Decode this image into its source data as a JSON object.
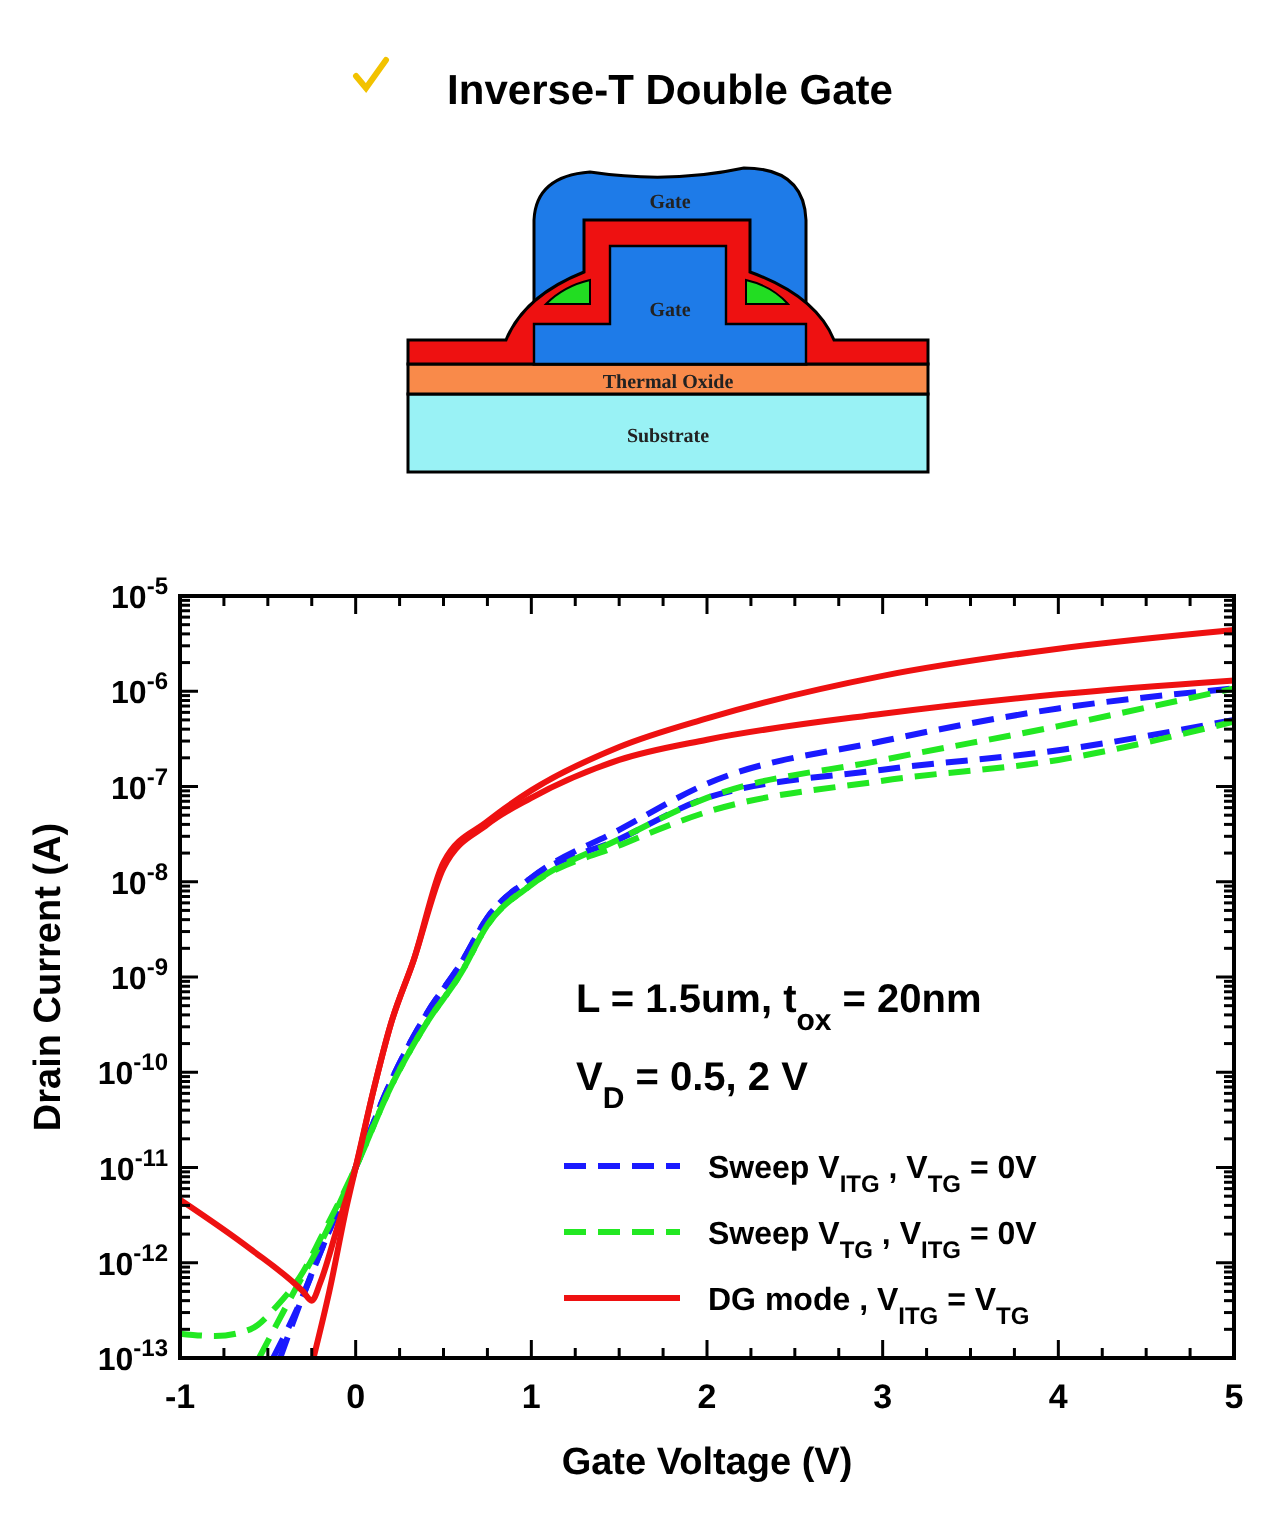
{
  "chart_data": {
    "type": "line",
    "title": "Inverse-T Double Gate",
    "xlabel": "Gate Voltage (V)",
    "ylabel": "Drain Current (A)",
    "log": "y",
    "xlim": [
      -1,
      5
    ],
    "xticks": [
      -1,
      0,
      1,
      2,
      3,
      4,
      5
    ],
    "ylim": [
      1e-13,
      1e-05
    ],
    "yticks": [
      {
        "value": 1e-13,
        "label": "10$^{-13}$"
      },
      {
        "value": 1e-12,
        "label": "10$^{-12}$"
      },
      {
        "value": 1e-11,
        "label": "10$^{-11}$"
      },
      {
        "value": 1e-10,
        "label": "10$^{-10}$"
      },
      {
        "value": 1e-09,
        "label": "10$^{-9}$"
      },
      {
        "value": 1e-08,
        "label": "10$^{-8}$"
      },
      {
        "value": 1e-07,
        "label": "10$^{-7}$"
      },
      {
        "value": 1e-06,
        "label": "10$^{-6}$"
      },
      {
        "value": 1e-05,
        "label": "10$^{-5}$"
      }
    ],
    "grid": false,
    "legend": "bottom right",
    "marker": "none",
    "annotations": [
      "L = 1.5um,  t$_{ox}$ = 20nm",
      "V$_{D}$ = 0.5, 2 V",
      "Gate",
      "Gate",
      "Thermal Oxide",
      "Substrate"
    ],
    "series": [
      {
        "name": "Sweep V$_{ITG}$ , V$_{TG}$ = 0V",
        "color": "#1a1aff",
        "line_style": "dashed",
        "x": [
          -0.47,
          -0.3,
          -0.2,
          0,
          0.2,
          0.4,
          0.6,
          0.75,
          1,
          1.5,
          2,
          3,
          4,
          5
        ],
        "values": [
          1e-13,
          4.5e-13,
          1.3e-12,
          1e-11,
          8e-11,
          4e-10,
          1.4e-09,
          4.2e-09,
          1.1e-08,
          2.8e-08,
          7.6e-08,
          1.5e-07,
          2.4e-07,
          5e-07
        ]
      },
      {
        "color": "#1a1aff",
        "line_style": "dashed",
        "x": [
          -0.43,
          -0.3,
          -0.2,
          0,
          0.2,
          0.4,
          0.6,
          0.75,
          1,
          1.5,
          2,
          3,
          4,
          5
        ],
        "values": [
          1e-13,
          4.5e-13,
          1.3e-12,
          1e-11,
          8e-11,
          4e-10,
          1.4e-09,
          4.2e-09,
          1.1e-08,
          3.5e-08,
          1.07e-07,
          3e-07,
          6.6e-07,
          1.07e-06
        ]
      },
      {
        "name": "Sweep V$_{TG}$ , V$_{ITG}$ = 0V",
        "color": "#22e822",
        "line_style": "dashed",
        "x": [
          -0.55,
          -0.35,
          -0.2,
          0,
          0.2,
          0.4,
          0.6,
          0.75,
          1,
          1.5,
          2,
          3,
          4,
          5
        ],
        "values": [
          1e-13,
          5e-13,
          1.6e-12,
          1e-11,
          7e-11,
          3.2e-10,
          1.1e-09,
          3.5e-09,
          9.3e-09,
          2.4e-08,
          5.4e-08,
          1.15e-07,
          1.9e-07,
          4.8e-07
        ]
      },
      {
        "color": "#22e822",
        "line_style": "dashed",
        "x": [
          -1,
          -0.8,
          -0.6,
          -0.45,
          -0.3,
          -0.2,
          0,
          0.2,
          0.4,
          0.6,
          0.75,
          1,
          1.5,
          2,
          3,
          4,
          5
        ],
        "values": [
          1.8e-13,
          1.7e-13,
          2e-13,
          3.5e-13,
          8e-13,
          1.8e-12,
          1e-11,
          7e-11,
          3.2e-10,
          1.1e-09,
          3.5e-09,
          9.3e-09,
          2.8e-08,
          7.6e-08,
          1.9e-07,
          4.3e-07,
          1.07e-06
        ]
      },
      {
        "name": "DG mode , V$_{ITG}$ = V$_{TG}$",
        "color": "#ee1111",
        "line_style": "solid",
        "x": [
          -0.24,
          -0.15,
          -0.05,
          0,
          0.1,
          0.2,
          0.33,
          0.5,
          0.75,
          1,
          1.5,
          2,
          3,
          4,
          5
        ],
        "values": [
          1e-13,
          5e-13,
          4e-12,
          1e-11,
          6.3e-11,
          3.2e-10,
          1.5e-09,
          1.4e-08,
          4e-08,
          7.6e-08,
          1.9e-07,
          3.1e-07,
          5.8e-07,
          9.3e-07,
          1.3e-06
        ]
      },
      {
        "color": "#ee1111",
        "line_style": "solid",
        "x": [
          -1,
          -0.6,
          -0.3,
          -0.25,
          -0.2,
          -0.1,
          0,
          0.1,
          0.2,
          0.33,
          0.5,
          0.75,
          1,
          1.5,
          2,
          3,
          4,
          5
        ],
        "values": [
          4.6e-12,
          1.4e-12,
          5e-13,
          4e-13,
          6.3e-13,
          2.5e-12,
          1e-11,
          6.3e-11,
          3.2e-10,
          1.5e-09,
          1.6e-08,
          4.3e-08,
          9.1e-08,
          2.6e-07,
          5.2e-07,
          1.45e-06,
          2.8e-06,
          4.4e-06
        ]
      }
    ]
  }
}
